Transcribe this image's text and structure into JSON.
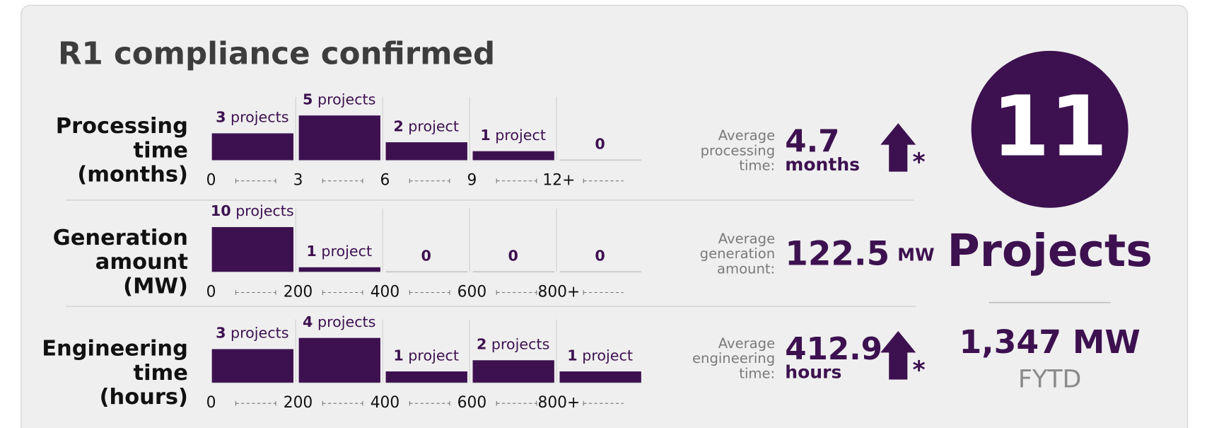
{
  "title": "R1 compliance confirmed",
  "chart_data": [
    {
      "type": "bar",
      "label": [
        "Processing",
        "time",
        "(months)"
      ],
      "categories": [
        "0",
        "3",
        "6",
        "9",
        "12+"
      ],
      "values": [
        3,
        5,
        2,
        1,
        0
      ],
      "value_labels": [
        "3 projects",
        "5 projects",
        "2 project",
        "1 project",
        "0"
      ],
      "color": "#3d1150",
      "average_label": [
        "Average",
        "processing",
        "time:"
      ],
      "average": 4.7,
      "average_unit": "months",
      "arrow": "up",
      "arrow_note": "*"
    },
    {
      "type": "bar",
      "label": [
        "Generation",
        "amount",
        "(MW)"
      ],
      "categories": [
        "0",
        "200",
        "400",
        "600",
        "800+"
      ],
      "values": [
        10,
        1,
        0,
        0,
        0
      ],
      "value_labels": [
        "10 projects",
        "1 project",
        "0",
        "0",
        "0"
      ],
      "color": "#3d1150",
      "average_label": [
        "Average",
        "generation",
        "amount:"
      ],
      "average": 122.5,
      "average_unit": "MW"
    },
    {
      "type": "bar",
      "label": [
        "Engineering",
        "time",
        "(hours)"
      ],
      "categories": [
        "0",
        "200",
        "400",
        "600",
        "800+"
      ],
      "values": [
        3,
        4,
        1,
        2,
        1
      ],
      "value_labels": [
        "3 projects",
        "4 projects",
        "1 project",
        "2 projects",
        "1 project"
      ],
      "color": "#3d1150",
      "average_label": [
        "Average",
        "engineering",
        "time:"
      ],
      "average": 412.9,
      "average_unit": "hours",
      "arrow": "up",
      "arrow_note": "*"
    }
  ],
  "summary": {
    "count": 11,
    "label": "Projects",
    "total": "1,347 MW",
    "period": "FYTD"
  }
}
